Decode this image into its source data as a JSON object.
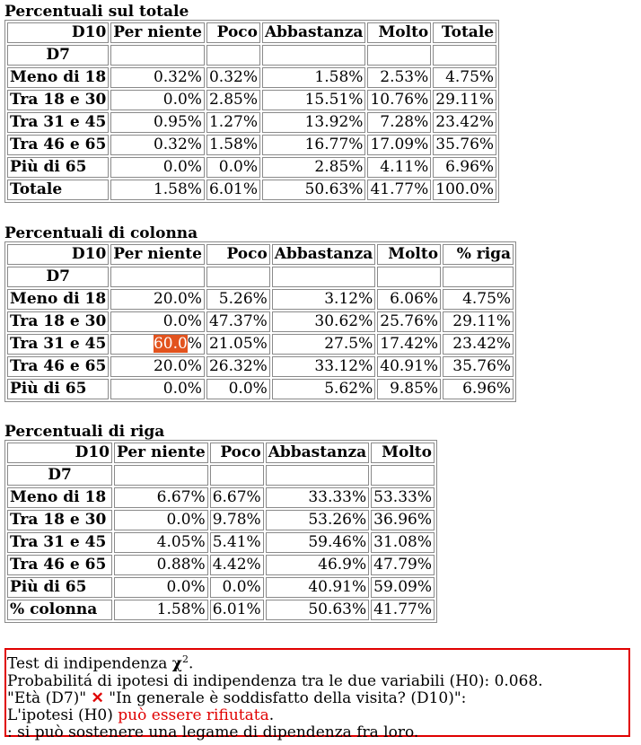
{
  "tables": [
    {
      "title": "Percentuali sul totale",
      "corner": "D10",
      "columns": [
        "Per niente",
        "Poco",
        "Abbastanza",
        "Molto",
        "Totale"
      ],
      "subheader": "D7",
      "rows": [
        {
          "label": "Meno di 18",
          "values": [
            "0.32%",
            "0.32%",
            "1.58%",
            "2.53%",
            "4.75%"
          ]
        },
        {
          "label": "Tra 18 e 30",
          "values": [
            "0.0%",
            "2.85%",
            "15.51%",
            "10.76%",
            "29.11%"
          ]
        },
        {
          "label": "Tra 31 e 45",
          "values": [
            "0.95%",
            "1.27%",
            "13.92%",
            "7.28%",
            "23.42%"
          ]
        },
        {
          "label": "Tra 46 e 65",
          "values": [
            "0.32%",
            "1.58%",
            "16.77%",
            "17.09%",
            "35.76%"
          ]
        },
        {
          "label": "Più di 65",
          "values": [
            "0.0%",
            "0.0%",
            "2.85%",
            "4.11%",
            "6.96%"
          ]
        },
        {
          "label": "Totale",
          "values": [
            "1.58%",
            "6.01%",
            "50.63%",
            "41.77%",
            "100.0%"
          ]
        }
      ]
    },
    {
      "title": "Percentuali di colonna",
      "corner": "D10",
      "columns": [
        "Per niente",
        "Poco",
        "Abbastanza",
        "Molto",
        "% riga"
      ],
      "subheader": "D7",
      "rows": [
        {
          "label": "Meno di 18",
          "values": [
            "20.0%",
            "5.26%",
            "3.12%",
            "6.06%",
            "4.75%"
          ]
        },
        {
          "label": "Tra 18 e 30",
          "values": [
            "0.0%",
            "47.37%",
            "30.62%",
            "25.76%",
            "29.11%"
          ]
        },
        {
          "label": "Tra 31 e 45",
          "values": [
            "60.0%",
            "21.05%",
            "27.5%",
            "17.42%",
            "23.42%"
          ],
          "highlight": {
            "col": 0,
            "text": "60.0",
            "rest": "%"
          }
        },
        {
          "label": "Tra 46 e 65",
          "values": [
            "20.0%",
            "26.32%",
            "33.12%",
            "40.91%",
            "35.76%"
          ]
        },
        {
          "label": "Più di 65",
          "values": [
            "0.0%",
            "0.0%",
            "5.62%",
            "9.85%",
            "6.96%"
          ]
        }
      ]
    },
    {
      "title": "Percentuali di riga",
      "corner": "D10",
      "columns": [
        "Per niente",
        "Poco",
        "Abbastanza",
        "Molto"
      ],
      "subheader": "D7",
      "rows": [
        {
          "label": "Meno di 18",
          "values": [
            "6.67%",
            "6.67%",
            "33.33%",
            "53.33%"
          ]
        },
        {
          "label": "Tra 18 e 30",
          "values": [
            "0.0%",
            "9.78%",
            "53.26%",
            "36.96%"
          ]
        },
        {
          "label": "Tra 31 e 45",
          "values": [
            "4.05%",
            "5.41%",
            "59.46%",
            "31.08%"
          ]
        },
        {
          "label": "Tra 46 e 65",
          "values": [
            "0.88%",
            "4.42%",
            "46.9%",
            "47.79%"
          ]
        },
        {
          "label": "Più di 65",
          "values": [
            "0.0%",
            "0.0%",
            "40.91%",
            "59.09%"
          ]
        },
        {
          "label": "% colonna",
          "values": [
            "1.58%",
            "6.01%",
            "50.63%",
            "41.77%"
          ]
        }
      ]
    }
  ],
  "chi_test": {
    "line1_prefix": "Test di indipendenza ",
    "line1_symbol": "χ",
    "line1_sup": "2",
    "line1_suffix": ".",
    "line2": "Probabilitá di ipotesi di indipendenza tra le due variabili (H0): 0.068.",
    "line3_var1": "\"Età (D7)\"",
    "line3_icon": "cross-mark-icon",
    "line3_var2": "\"In generale è soddisfatto della visita? (D10)\":",
    "line4_prefix": "L'ipotesi (H0) ",
    "line4_highlight": "può essere rifiutata",
    "line4_suffix": ".",
    "line5": ": si può sostenere una legame di dipendenza fra loro.",
    "accent_color": "#e00000",
    "highlight_color": "#e2531e"
  }
}
